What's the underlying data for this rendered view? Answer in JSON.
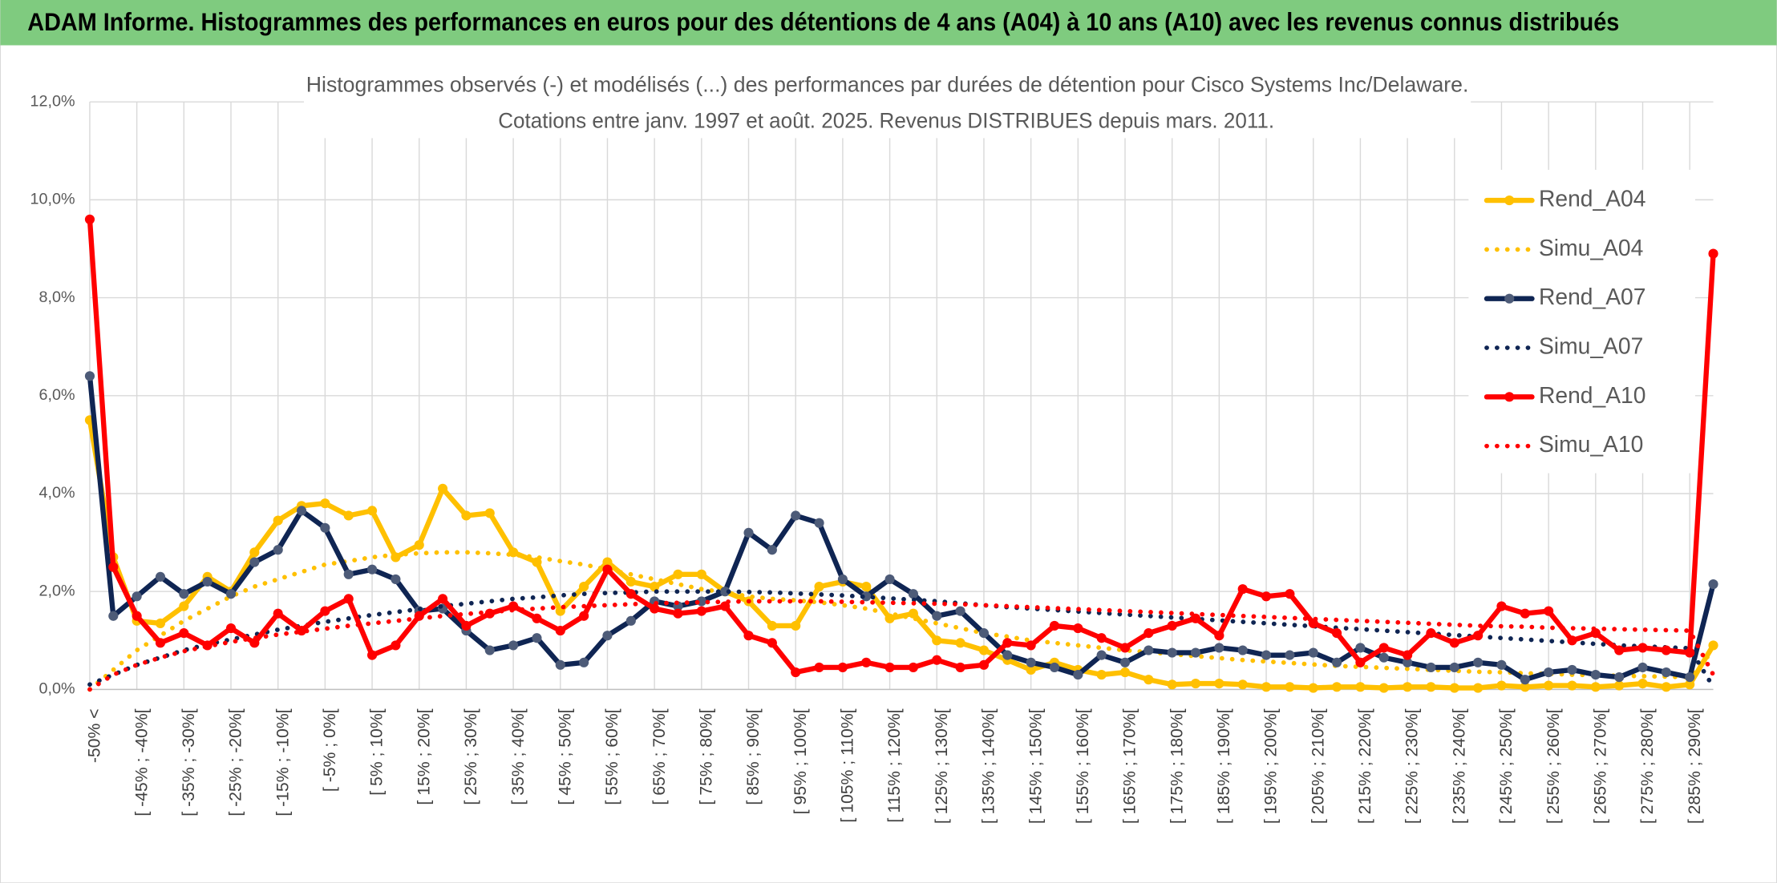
{
  "header": {
    "title": "ADAM Informe. Histogrammes des performances en euros pour des détentions de 4 ans (A04) à 10 ans (A10) avec les revenus connus distribués"
  },
  "chart_data": {
    "type": "line",
    "title": "Histogrammes observés (-) et modélisés (...) des performances par durées de détention pour Cisco Systems Inc/Delaware.",
    "subtitle": "Cotations entre janv. 1997 et août. 2025. Revenus DISTRIBUES depuis mars. 2011.",
    "categories": [
      "-50% <",
      null,
      "[ -45% ; -40%[",
      null,
      "[ -35% ; -30%[",
      null,
      "[ -25% ; -20%[",
      null,
      "[ -15% ; -10%[",
      null,
      "[ -5% ; 0%[",
      null,
      "[ 5% ; 10%[",
      null,
      "[ 15% ; 20%[",
      null,
      "[ 25% ; 30%[",
      null,
      "[ 35% ; 40%[",
      null,
      "[ 45% ; 50%[",
      null,
      "[ 55% ; 60%[",
      null,
      "[ 65% ; 70%[",
      null,
      "[ 75% ; 80%[",
      null,
      "[ 85% ; 90%[",
      null,
      "[ 95% ; 100%[",
      null,
      "[ 105% ; 110%[",
      null,
      "[ 115% ; 120%[",
      null,
      "[ 125% ; 130%[",
      null,
      "[ 135% ; 140%[",
      null,
      "[ 145% ; 150%[",
      null,
      "[ 155% ; 160%[",
      null,
      "[ 165% ; 170%[",
      null,
      "[ 175% ; 180%[",
      null,
      "[ 185% ; 190%[",
      null,
      "[ 195% ; 200%[",
      null,
      "[ 205% ; 210%[",
      null,
      "[ 215% ; 220%[",
      null,
      "[ 225% ; 230%[",
      null,
      "[ 235% ; 240%[",
      null,
      "[ 245% ; 250%[",
      null,
      "[ 255% ; 260%[",
      null,
      "[ 265% ; 270%[",
      null,
      "[ 275% ; 280%[",
      null,
      "[ 285% ; 290%[",
      null
    ],
    "ylim": [
      0,
      12
    ],
    "yticks": [
      {
        "value": 0,
        "label": "0,0%"
      },
      {
        "value": 2,
        "label": "2,0%"
      },
      {
        "value": 4,
        "label": "4,0%"
      },
      {
        "value": 6,
        "label": "6,0%"
      },
      {
        "value": 8,
        "label": "8,0%"
      },
      {
        "value": 10,
        "label": "10,0%"
      },
      {
        "value": 12,
        "label": "12,0%"
      }
    ],
    "grid": true,
    "legend": "right",
    "series": [
      {
        "name": "Rend_A04",
        "color": "#ffc000",
        "style": "solid",
        "markers": true,
        "values": [
          5.5,
          2.7,
          1.4,
          1.35,
          1.7,
          2.3,
          2.0,
          2.8,
          3.45,
          3.75,
          3.8,
          3.55,
          3.65,
          2.7,
          2.95,
          4.1,
          3.55,
          3.6,
          2.8,
          2.6,
          1.6,
          2.1,
          2.6,
          2.2,
          2.1,
          2.35,
          2.35,
          2.0,
          1.8,
          1.3,
          1.3,
          2.1,
          2.2,
          2.1,
          1.45,
          1.55,
          1.0,
          0.95,
          0.8,
          0.6,
          0.4,
          0.55,
          0.4,
          0.3,
          0.35,
          0.2,
          0.1,
          0.12,
          0.12,
          0.1,
          0.05,
          0.05,
          0.03,
          0.05,
          0.05,
          0.03,
          0.05,
          0.05,
          0.03,
          0.03,
          0.08,
          0.05,
          0.08,
          0.08,
          0.05,
          0.08,
          0.12,
          0.05,
          0.1,
          0.9
        ]
      },
      {
        "name": "Simu_A04",
        "color": "#ffc000",
        "style": "dotted",
        "markers": false,
        "values": [
          0,
          0.4,
          0.8,
          1.1,
          1.4,
          1.65,
          1.9,
          2.1,
          2.25,
          2.4,
          2.55,
          2.62,
          2.7,
          2.75,
          2.78,
          2.8,
          2.8,
          2.78,
          2.75,
          2.7,
          2.62,
          2.55,
          2.45,
          2.35,
          2.25,
          2.15,
          2.05,
          1.98,
          1.9,
          1.85,
          1.82,
          1.78,
          1.72,
          1.65,
          1.55,
          1.45,
          1.35,
          1.25,
          1.15,
          1.08,
          1.0,
          0.95,
          0.9,
          0.85,
          0.8,
          0.76,
          0.72,
          0.68,
          0.64,
          0.6,
          0.57,
          0.54,
          0.51,
          0.48,
          0.46,
          0.44,
          0.42,
          0.4,
          0.38,
          0.36,
          0.35,
          0.33,
          0.32,
          0.3,
          0.29,
          0.28,
          0.27,
          0.26,
          0.25,
          0.8
        ]
      },
      {
        "name": "Rend_A07",
        "color": "#0f2553",
        "marker_color": "#4d5b78",
        "style": "solid",
        "markers": true,
        "values": [
          6.4,
          1.5,
          1.9,
          2.3,
          1.95,
          2.2,
          1.95,
          2.6,
          2.85,
          3.65,
          3.3,
          2.35,
          2.45,
          2.25,
          1.6,
          1.65,
          1.2,
          0.8,
          0.9,
          1.05,
          0.5,
          0.55,
          1.1,
          1.4,
          1.8,
          1.7,
          1.8,
          2.0,
          3.2,
          2.85,
          3.55,
          3.4,
          2.25,
          1.9,
          2.25,
          1.95,
          1.5,
          1.6,
          1.15,
          0.7,
          0.55,
          0.45,
          0.3,
          0.7,
          0.55,
          0.8,
          0.75,
          0.75,
          0.85,
          0.8,
          0.7,
          0.7,
          0.75,
          0.55,
          0.85,
          0.65,
          0.55,
          0.45,
          0.45,
          0.55,
          0.5,
          0.2,
          0.35,
          0.4,
          0.3,
          0.25,
          0.45,
          0.35,
          0.25,
          2.15
        ]
      },
      {
        "name": "Simu_A07",
        "color": "#0f2553",
        "style": "dotted",
        "markers": false,
        "values": [
          0.1,
          0.3,
          0.5,
          0.65,
          0.8,
          0.92,
          1.02,
          1.12,
          1.22,
          1.3,
          1.38,
          1.45,
          1.52,
          1.58,
          1.64,
          1.7,
          1.75,
          1.8,
          1.85,
          1.88,
          1.92,
          1.95,
          1.97,
          1.98,
          2.0,
          2.0,
          2.0,
          2.0,
          1.99,
          1.98,
          1.96,
          1.94,
          1.92,
          1.89,
          1.86,
          1.83,
          1.8,
          1.76,
          1.72,
          1.68,
          1.65,
          1.62,
          1.59,
          1.56,
          1.53,
          1.5,
          1.47,
          1.44,
          1.41,
          1.38,
          1.35,
          1.32,
          1.29,
          1.26,
          1.23,
          1.2,
          1.17,
          1.14,
          1.11,
          1.08,
          1.05,
          1.02,
          0.99,
          0.96,
          0.93,
          0.9,
          0.88,
          0.86,
          0.84,
          0.05
        ]
      },
      {
        "name": "Rend_A10",
        "color": "#ff0000",
        "style": "solid",
        "markers": true,
        "values": [
          9.6,
          2.5,
          1.5,
          0.95,
          1.15,
          0.9,
          1.25,
          0.95,
          1.55,
          1.2,
          1.6,
          1.85,
          0.7,
          0.9,
          1.5,
          1.85,
          1.3,
          1.55,
          1.7,
          1.45,
          1.2,
          1.5,
          2.45,
          1.95,
          1.65,
          1.55,
          1.6,
          1.7,
          1.1,
          0.95,
          0.35,
          0.45,
          0.45,
          0.55,
          0.45,
          0.45,
          0.6,
          0.45,
          0.5,
          0.95,
          0.9,
          1.3,
          1.25,
          1.05,
          0.85,
          1.15,
          1.3,
          1.45,
          1.1,
          2.05,
          1.9,
          1.95,
          1.35,
          1.15,
          0.55,
          0.85,
          0.7,
          1.15,
          0.95,
          1.1,
          1.7,
          1.55,
          1.6,
          1.0,
          1.15,
          0.8,
          0.85,
          0.8,
          0.75,
          8.9
        ]
      },
      {
        "name": "Simu_A10",
        "color": "#ff0000",
        "style": "dotted",
        "markers": false,
        "values": [
          0,
          0.3,
          0.5,
          0.65,
          0.78,
          0.88,
          0.97,
          1.05,
          1.12,
          1.18,
          1.24,
          1.3,
          1.35,
          1.4,
          1.45,
          1.5,
          1.54,
          1.58,
          1.62,
          1.65,
          1.68,
          1.7,
          1.72,
          1.74,
          1.76,
          1.77,
          1.78,
          1.79,
          1.8,
          1.8,
          1.8,
          1.8,
          1.79,
          1.78,
          1.77,
          1.76,
          1.75,
          1.74,
          1.72,
          1.7,
          1.68,
          1.66,
          1.64,
          1.62,
          1.6,
          1.58,
          1.56,
          1.54,
          1.52,
          1.5,
          1.48,
          1.46,
          1.44,
          1.42,
          1.4,
          1.38,
          1.36,
          1.34,
          1.32,
          1.3,
          1.29,
          1.28,
          1.26,
          1.25,
          1.24,
          1.23,
          1.22,
          1.21,
          1.2,
          0.3
        ]
      }
    ]
  }
}
